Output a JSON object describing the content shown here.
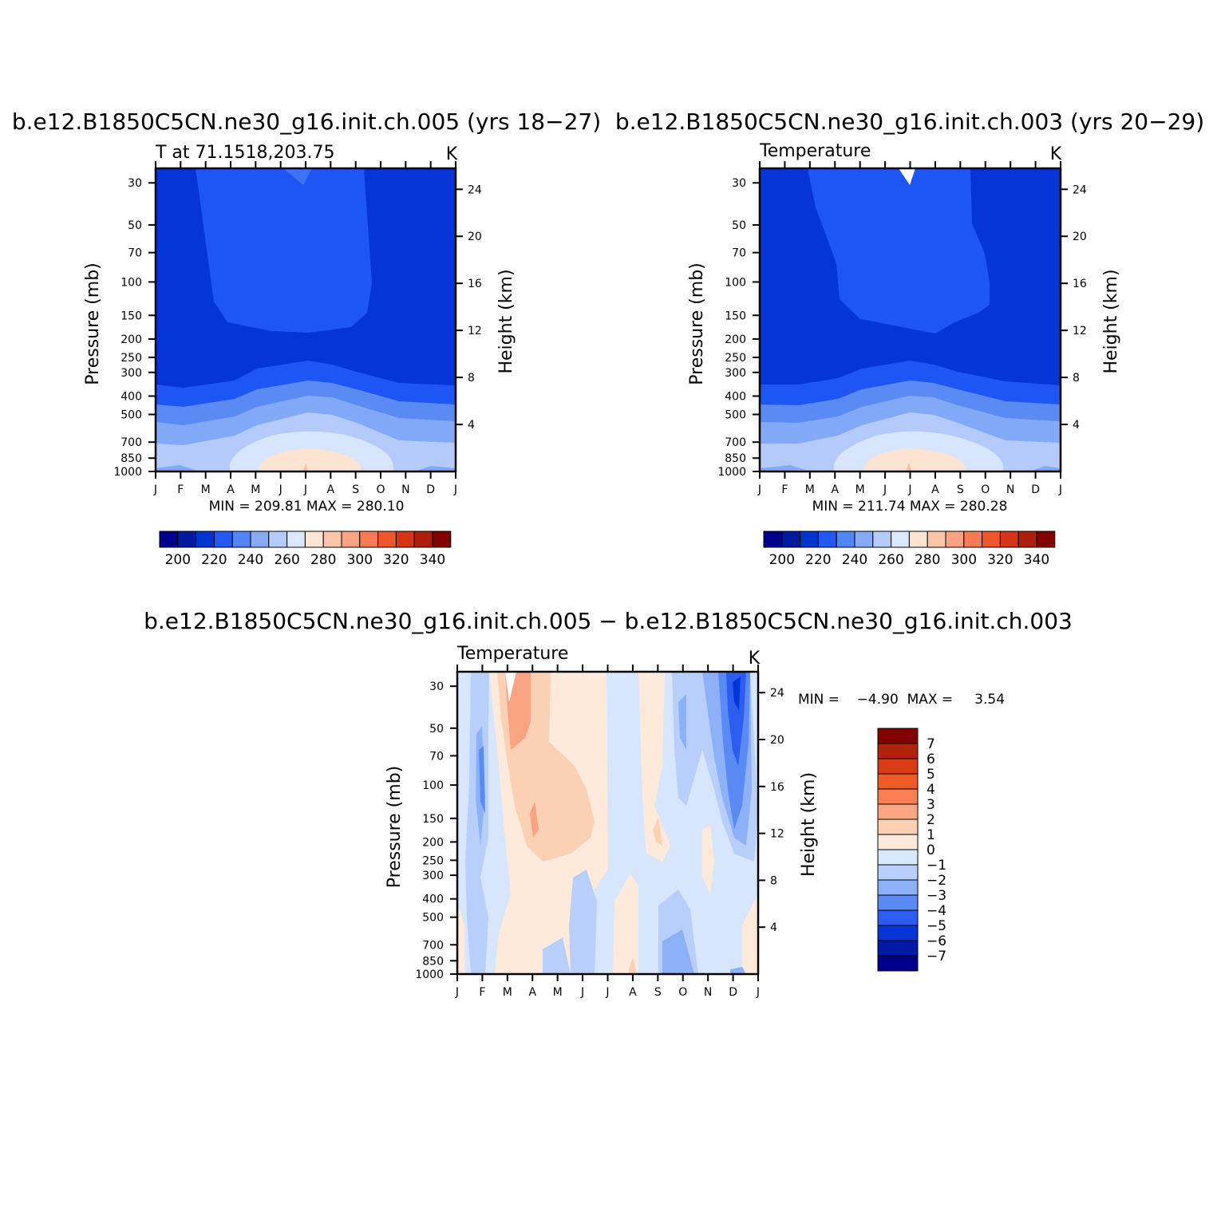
{
  "chart_data": [
    {
      "type": "heatmap",
      "id": "panel-a",
      "title": "b.e12.B1850C5CN.ne30_g16.init.ch.005 (yrs 18−27)",
      "left_label": "T at 71.1518,203.75",
      "units": "K",
      "ylabel": "Pressure (mb)",
      "y2label": "Height (km)",
      "x_ticks": [
        "J",
        "F",
        "M",
        "A",
        "M",
        "J",
        "J",
        "A",
        "S",
        "O",
        "N",
        "D",
        "J"
      ],
      "y_ticks": [
        "30",
        "50",
        "70",
        "100",
        "150",
        "200",
        "250",
        "300",
        "400",
        "500",
        "700",
        "850",
        "1000"
      ],
      "y2_ticks": [
        "24",
        "20",
        "16",
        "12",
        "8",
        "4"
      ],
      "min_max": "MIN = 209.81  MAX = 280.10",
      "min": 209.81,
      "max": 280.1,
      "colorbar": {
        "orientation": "horizontal",
        "labels": [
          "200",
          "220",
          "240",
          "260",
          "280",
          "300",
          "320",
          "340"
        ],
        "colors": [
          "#00008b",
          "#001a9e",
          "#0034d0",
          "#2458f2",
          "#5285f8",
          "#87aaf7",
          "#b5ccfa",
          "#d9e8fd",
          "#fde5d4",
          "#fbc5a9",
          "#f9a382",
          "#f77c55",
          "#f0562b",
          "#d43515",
          "#ab1f0c",
          "#800000"
        ]
      }
    },
    {
      "type": "heatmap",
      "id": "panel-b",
      "title": "b.e12.B1850C5CN.ne30_g16.init.ch.003 (yrs 20−29)",
      "left_label": "Temperature",
      "units": "K",
      "ylabel": "Pressure (mb)",
      "y2label": "Height (km)",
      "x_ticks": [
        "J",
        "F",
        "M",
        "A",
        "M",
        "J",
        "J",
        "A",
        "S",
        "O",
        "N",
        "D",
        "J"
      ],
      "y_ticks": [
        "30",
        "50",
        "70",
        "100",
        "150",
        "200",
        "250",
        "300",
        "400",
        "500",
        "700",
        "850",
        "1000"
      ],
      "y2_ticks": [
        "24",
        "20",
        "16",
        "12",
        "8",
        "4"
      ],
      "min_max": "MIN = 211.74  MAX = 280.28",
      "min": 211.74,
      "max": 280.28,
      "colorbar": {
        "orientation": "horizontal",
        "labels": [
          "200",
          "220",
          "240",
          "260",
          "280",
          "300",
          "320",
          "340"
        ],
        "colors": [
          "#00008b",
          "#001a9e",
          "#0034d0",
          "#2458f2",
          "#5285f8",
          "#87aaf7",
          "#b5ccfa",
          "#d9e8fd",
          "#fde5d4",
          "#fbc5a9",
          "#f9a382",
          "#f77c55",
          "#f0562b",
          "#d43515",
          "#ab1f0c",
          "#800000"
        ]
      }
    },
    {
      "type": "heatmap",
      "id": "panel-c",
      "title": "b.e12.B1850C5CN.ne30_g16.init.ch.005 − b.e12.B1850C5CN.ne30_g16.init.ch.003",
      "left_label": "Temperature",
      "units": "K",
      "ylabel": "Pressure (mb)",
      "y2label": "Height (km)",
      "x_ticks": [
        "J",
        "F",
        "M",
        "A",
        "M",
        "J",
        "J",
        "A",
        "S",
        "O",
        "N",
        "D",
        "J"
      ],
      "y_ticks": [
        "30",
        "50",
        "70",
        "100",
        "150",
        "200",
        "250",
        "300",
        "400",
        "500",
        "700",
        "850",
        "1000"
      ],
      "y2_ticks": [
        "24",
        "20",
        "16",
        "12",
        "8",
        "4"
      ],
      "min_max": "MIN =    −4.90  MAX =     3.54",
      "min": -4.9,
      "max": 3.54,
      "colorbar": {
        "orientation": "vertical",
        "labels": [
          "7",
          "6",
          "5",
          "4",
          "3",
          "2",
          "1",
          "0",
          "−1",
          "−2",
          "−3",
          "−4",
          "−5",
          "−6",
          "−7"
        ],
        "colors": [
          "#800000",
          "#b0220c",
          "#d93b14",
          "#f05a28",
          "#f98050",
          "#fba882",
          "#fcd0b4",
          "#feeada",
          "#d8e8fd",
          "#b8cffb",
          "#8cb1f8",
          "#5a8bf5",
          "#2c5cf0",
          "#0535d6",
          "#001aa8",
          "#00008b"
        ]
      }
    }
  ]
}
